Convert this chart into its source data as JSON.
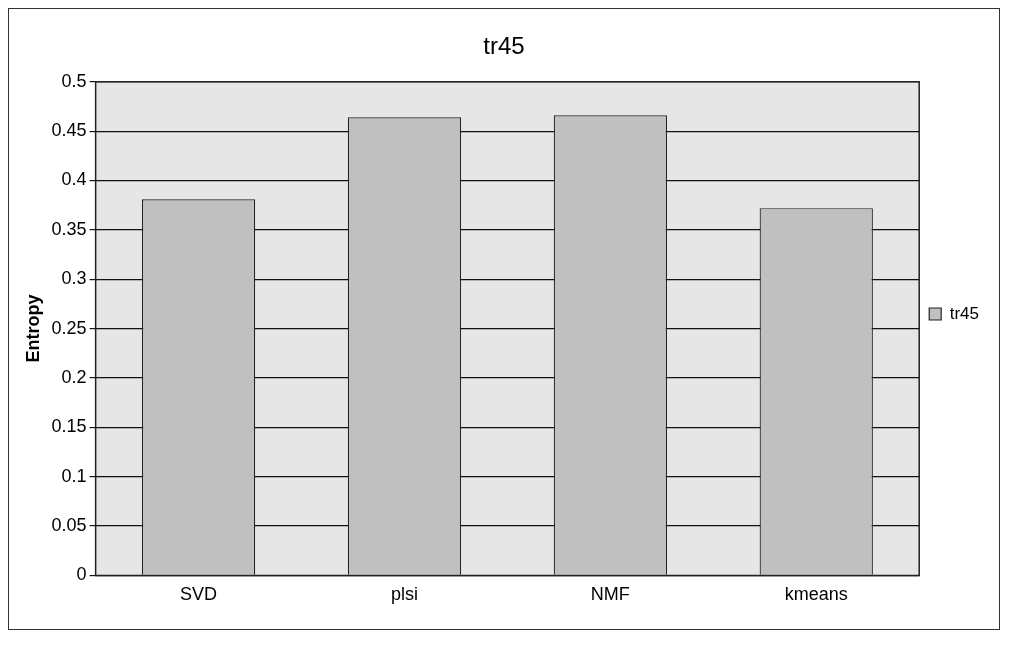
{
  "chart_data": {
    "type": "bar",
    "title": "tr45",
    "ylabel": "Entropy",
    "categories": [
      "SVD",
      "plsi",
      "NMF",
      "kmeans"
    ],
    "series": [
      {
        "name": "tr45",
        "color": "#c0c0c0",
        "values": [
          0.381,
          0.464,
          0.466,
          0.372
        ]
      }
    ],
    "ylim": [
      0,
      0.5
    ],
    "yticks": [
      0,
      0.05,
      0.1,
      0.15,
      0.2,
      0.25,
      0.3,
      0.35,
      0.4,
      0.45,
      0.5
    ],
    "grid": "y",
    "legend": "right"
  }
}
